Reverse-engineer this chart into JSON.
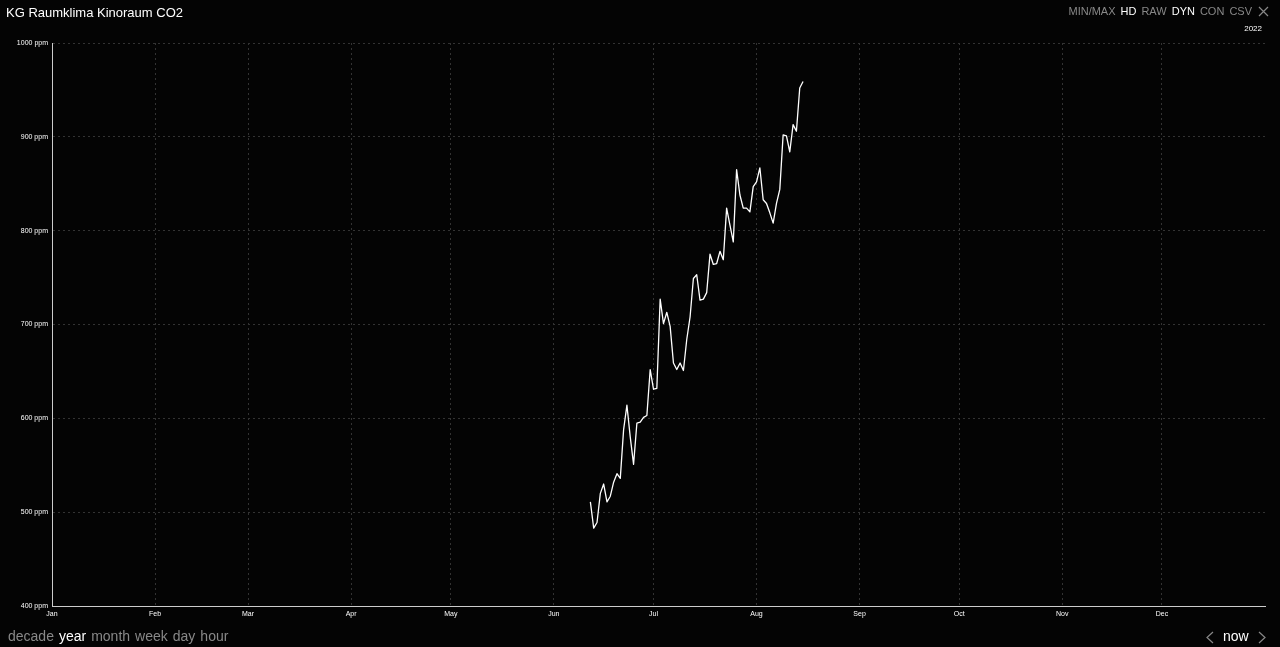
{
  "chart_data": {
    "type": "line",
    "title": "KG Raumklima Kinoraum CO2",
    "x": [
      "2022-06-12",
      "2022-06-13",
      "2022-06-14",
      "2022-06-15",
      "2022-06-16",
      "2022-06-17",
      "2022-06-18",
      "2022-06-19",
      "2022-06-20",
      "2022-06-21",
      "2022-06-22",
      "2022-06-23",
      "2022-06-24",
      "2022-06-25",
      "2022-06-26",
      "2022-06-27",
      "2022-06-28",
      "2022-06-29",
      "2022-06-30",
      "2022-07-01",
      "2022-07-02",
      "2022-07-03",
      "2022-07-04",
      "2022-07-05",
      "2022-07-06",
      "2022-07-07",
      "2022-07-08",
      "2022-07-09",
      "2022-07-10",
      "2022-07-11",
      "2022-07-12",
      "2022-07-13",
      "2022-07-14",
      "2022-07-15",
      "2022-07-16",
      "2022-07-17",
      "2022-07-18",
      "2022-07-19",
      "2022-07-20",
      "2022-07-21",
      "2022-07-22",
      "2022-07-23",
      "2022-07-24",
      "2022-07-25",
      "2022-07-26",
      "2022-07-27",
      "2022-07-28",
      "2022-07-29",
      "2022-07-30",
      "2022-07-31",
      "2022-08-01",
      "2022-08-02",
      "2022-08-03",
      "2022-08-04",
      "2022-08-05",
      "2022-08-06",
      "2022-08-07",
      "2022-08-08",
      "2022-08-09",
      "2022-08-10",
      "2022-08-11",
      "2022-08-12",
      "2022-08-13",
      "2022-08-14",
      "2022-08-15"
    ],
    "series": [
      {
        "color": "#ffffff",
        "values": [
          511,
          483,
          489,
          520,
          530,
          511,
          517,
          532,
          541,
          536,
          588,
          614,
          580,
          551,
          595,
          596,
          601,
          603,
          652,
          631,
          632,
          727,
          701,
          713,
          698,
          659,
          652,
          659,
          651,
          684,
          708,
          749,
          753,
          726,
          727,
          734,
          775,
          764,
          765,
          778,
          769,
          824,
          806,
          788,
          865,
          838,
          824,
          824,
          820,
          847,
          852,
          867,
          833,
          829,
          819,
          808,
          829,
          844,
          902,
          901,
          884,
          913,
          906,
          952,
          959
        ]
      }
    ],
    "xlim": [
      "2022-01-01",
      "2023-01-01"
    ],
    "xticks": [
      {
        "value": "2022-01-01",
        "label": "Jan"
      },
      {
        "value": "2022-02-01",
        "label": "Feb"
      },
      {
        "value": "2022-03-01",
        "label": "Mar"
      },
      {
        "value": "2022-04-01",
        "label": "Apr"
      },
      {
        "value": "2022-05-01",
        "label": "May"
      },
      {
        "value": "2022-06-01",
        "label": "Jun"
      },
      {
        "value": "2022-07-01",
        "label": "Jul"
      },
      {
        "value": "2022-08-01",
        "label": "Aug"
      },
      {
        "value": "2022-09-01",
        "label": "Sep"
      },
      {
        "value": "2022-10-01",
        "label": "Oct"
      },
      {
        "value": "2022-11-01",
        "label": "Nov"
      },
      {
        "value": "2022-12-01",
        "label": "Dec"
      }
    ],
    "ylim": [
      400,
      1000
    ],
    "yticks": [
      {
        "value": 400,
        "label": "400 ppm"
      },
      {
        "value": 500,
        "label": "500 ppm"
      },
      {
        "value": 600,
        "label": "600 ppm"
      },
      {
        "value": 700,
        "label": "700 ppm"
      },
      {
        "value": 800,
        "label": "800 ppm"
      },
      {
        "value": 900,
        "label": "900 ppm"
      },
      {
        "value": 1000,
        "label": "1000 ppm"
      }
    ],
    "grid": true,
    "legend": false,
    "marker": "none",
    "line_style": "solid",
    "annotations": [
      "MIN/MAX",
      "HD",
      "RAW",
      "DYN",
      "CON",
      "CSV",
      "2022",
      "decade",
      "year",
      "month",
      "week",
      "day",
      "hour",
      "now"
    ]
  }
}
